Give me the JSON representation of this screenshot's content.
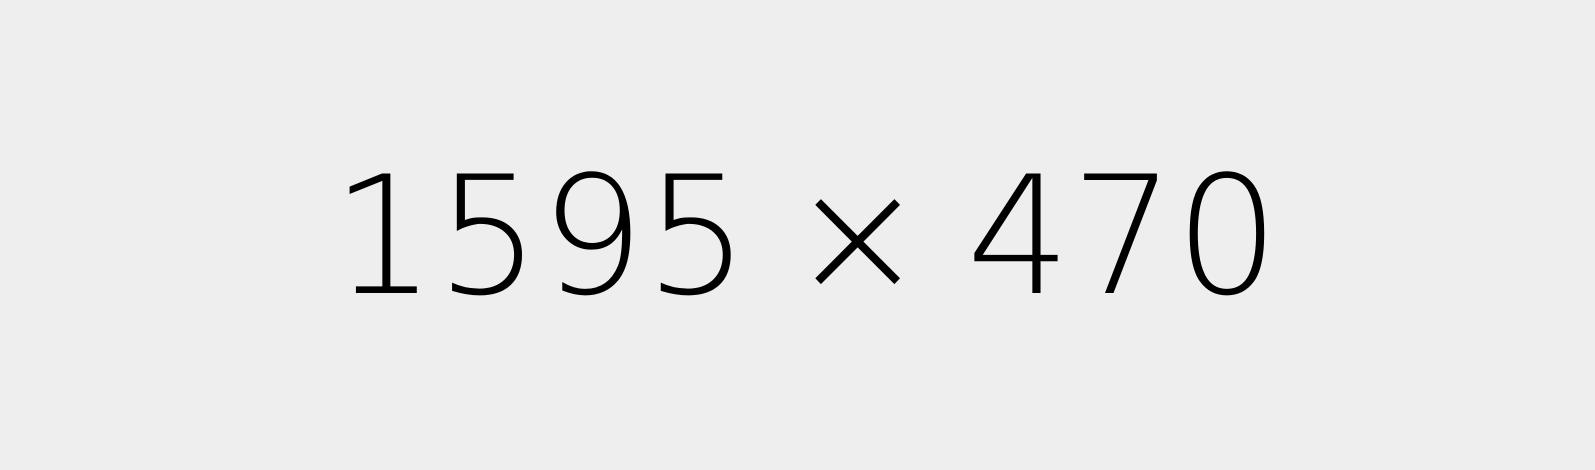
{
  "placeholder": {
    "width": "1595",
    "separator": "×",
    "height": "470"
  },
  "colors": {
    "background": "#eeeeee",
    "text": "#000000"
  }
}
